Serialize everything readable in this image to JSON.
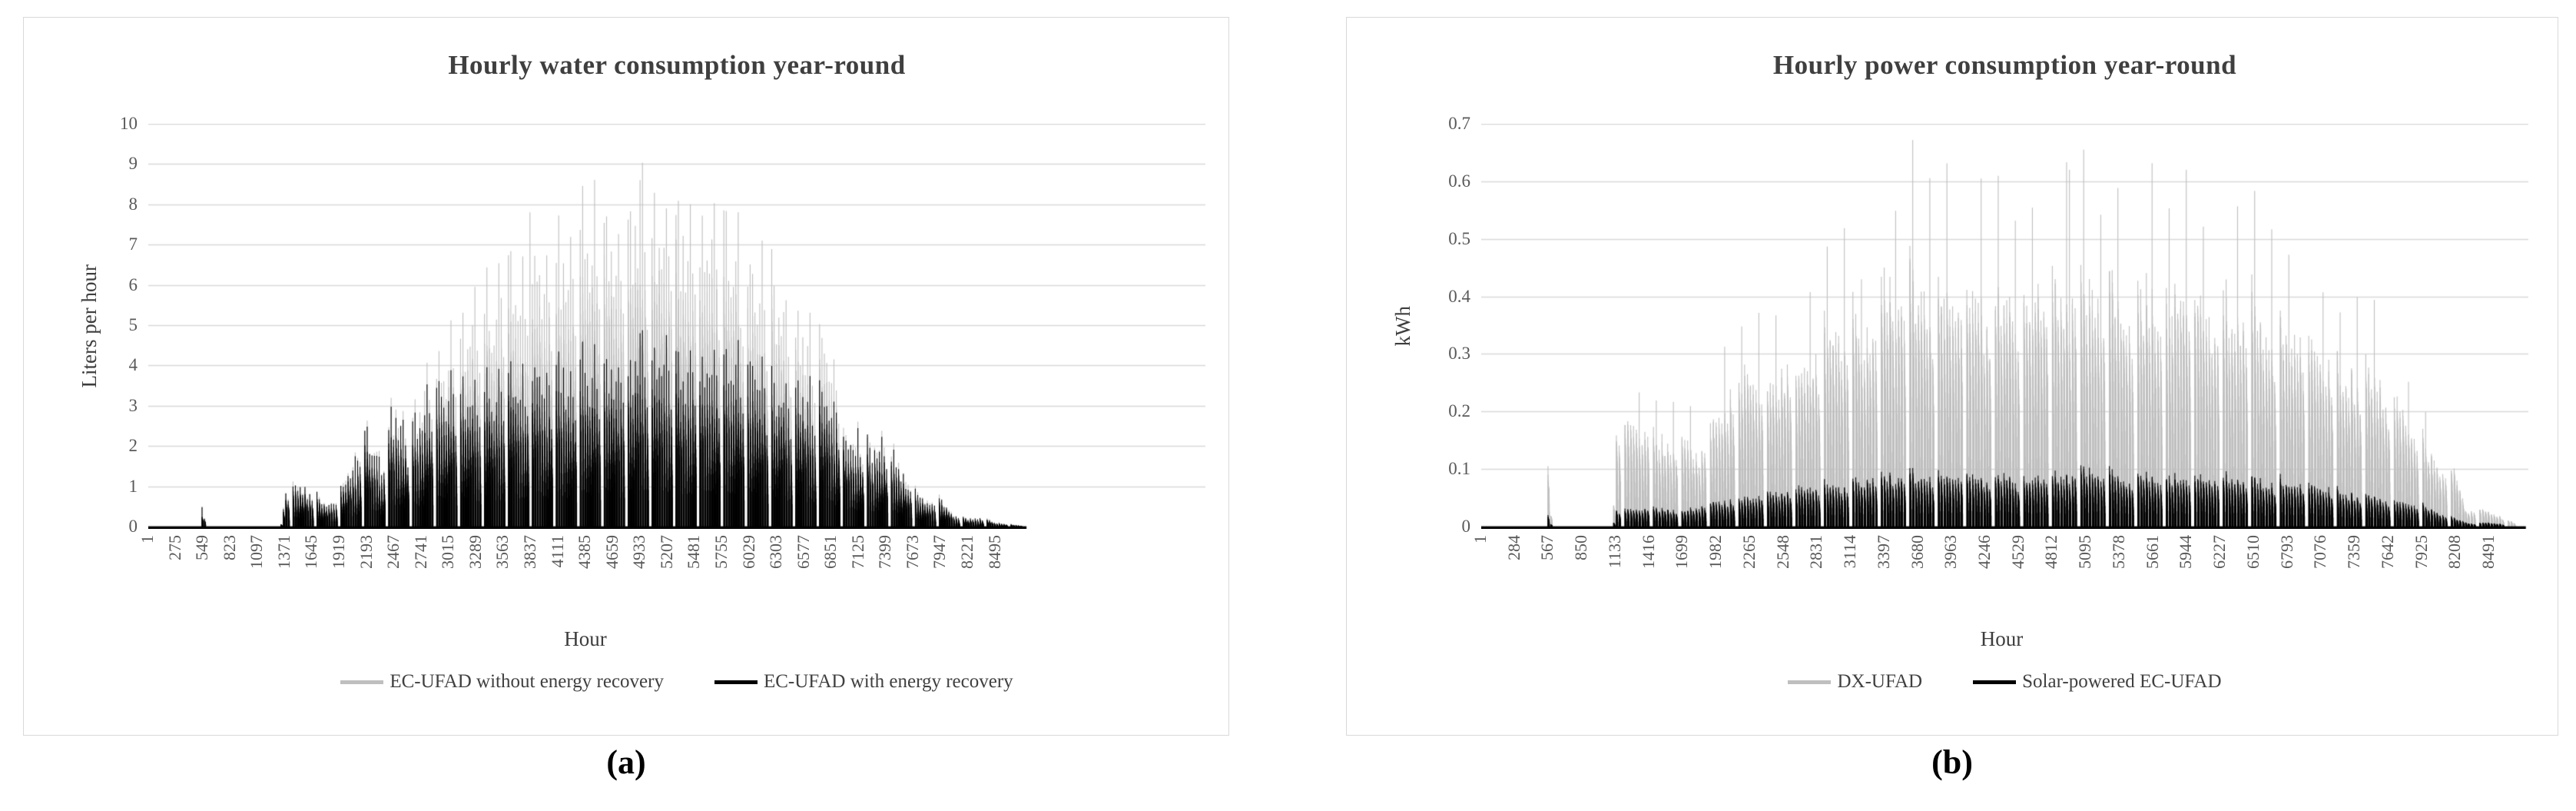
{
  "figure": {
    "background": "#ffffff"
  },
  "style": {
    "bar_gray": "#bfbfbf",
    "bar_black": "#000000",
    "gridline": "#d9d9d9",
    "axis_line": "#000000",
    "tick_text": "#595959",
    "title_text": "#3f3f3f",
    "card_border": "#d9d9d9",
    "legend_text": "#404040"
  },
  "panels": [
    {
      "caption": "(a)"
    },
    {
      "caption": "(b)"
    }
  ],
  "chart_data": [
    {
      "type": "bar",
      "title": "Hourly water consumption year-round",
      "xlabel": "Hour",
      "ylabel": "Liters per hour",
      "ylim": [
        0,
        10
      ],
      "y_ticks": [
        "10",
        "9",
        "8",
        "7",
        "6",
        "5",
        "4",
        "3",
        "2",
        "1",
        "0"
      ],
      "x_ticks": [
        "1",
        "275",
        "549",
        "823",
        "1097",
        "1371",
        "1645",
        "1919",
        "2193",
        "2467",
        "2741",
        "3015",
        "3289",
        "3563",
        "3837",
        "4111",
        "4385",
        "4659",
        "4933",
        "5207",
        "5481",
        "5755",
        "6029",
        "6303",
        "6577",
        "6851",
        "7125",
        "7399",
        "7673",
        "7947",
        "8221",
        "8495"
      ],
      "x_tick_interval": 274,
      "hours_total": 8760,
      "axis_hours": 10600,
      "grid": "horizontal",
      "legend_position": "bottom",
      "series": [
        {
          "name": "EC-UFAD without energy recovery",
          "color": "#bfbfbf",
          "boost_factor": 1.08,
          "envelope_points": [
            [
              1,
              0
            ],
            [
              520,
              0
            ],
            [
              549,
              0.5
            ],
            [
              580,
              0
            ],
            [
              1330,
              0
            ],
            [
              1371,
              0.95
            ],
            [
              1500,
              1.1
            ],
            [
              1645,
              0.9
            ],
            [
              1790,
              0.55
            ],
            [
              1919,
              0.9
            ],
            [
              2060,
              1.6
            ],
            [
              2193,
              2.6
            ],
            [
              2330,
              1.6
            ],
            [
              2467,
              3.0
            ],
            [
              2610,
              2.35
            ],
            [
              2741,
              3.4
            ],
            [
              2890,
              3.7
            ],
            [
              3015,
              4.4
            ],
            [
              3160,
              4.9
            ],
            [
              3289,
              6.0
            ],
            [
              3430,
              5.4
            ],
            [
              3563,
              6.4
            ],
            [
              3700,
              5.8
            ],
            [
              3837,
              6.6
            ],
            [
              3990,
              6.4
            ],
            [
              4111,
              6.7
            ],
            [
              4250,
              6.9
            ],
            [
              4385,
              7.2
            ],
            [
              4520,
              7.4
            ],
            [
              4659,
              7.2
            ],
            [
              4800,
              7.5
            ],
            [
              4933,
              7.9
            ],
            [
              5070,
              7.6
            ],
            [
              5207,
              7.9
            ],
            [
              5350,
              7.4
            ],
            [
              5481,
              7.3
            ],
            [
              5620,
              7.6
            ],
            [
              5755,
              7.1
            ],
            [
              5890,
              6.8
            ],
            [
              6029,
              6.6
            ],
            [
              6160,
              6.2
            ],
            [
              6303,
              6.0
            ],
            [
              6440,
              5.2
            ],
            [
              6577,
              4.7
            ],
            [
              6710,
              4.5
            ],
            [
              6851,
              4.6
            ],
            [
              6990,
              2.3
            ],
            [
              7125,
              2.3
            ],
            [
              7260,
              2.1
            ],
            [
              7399,
              2.2
            ],
            [
              7540,
              1.6
            ],
            [
              7673,
              1.1
            ],
            [
              7810,
              0.65
            ],
            [
              7947,
              0.75
            ],
            [
              8080,
              0.35
            ],
            [
              8221,
              0.22
            ],
            [
              8360,
              0.26
            ],
            [
              8495,
              0.12
            ],
            [
              8760,
              0.03
            ]
          ],
          "spikes": [
            [
              549,
              0.5
            ],
            [
              3837,
              7.8
            ],
            [
              4933,
              8.6
            ],
            [
              5207,
              7.9
            ]
          ]
        },
        {
          "name": "EC-UFAD with energy recovery",
          "color": "#000000",
          "boost_factor": 1.06,
          "envelope_points": [
            [
              1,
              0
            ],
            [
              520,
              0
            ],
            [
              549,
              0.48
            ],
            [
              580,
              0
            ],
            [
              1330,
              0
            ],
            [
              1371,
              0.93
            ],
            [
              1500,
              1.07
            ],
            [
              1645,
              0.88
            ],
            [
              1790,
              0.53
            ],
            [
              1919,
              0.88
            ],
            [
              2060,
              1.55
            ],
            [
              2193,
              2.5
            ],
            [
              2330,
              1.5
            ],
            [
              2467,
              2.85
            ],
            [
              2610,
              2.2
            ],
            [
              2741,
              3.05
            ],
            [
              2890,
              3.2
            ],
            [
              3015,
              3.45
            ],
            [
              3160,
              3.5
            ],
            [
              3289,
              3.7
            ],
            [
              3430,
              3.4
            ],
            [
              3563,
              3.85
            ],
            [
              3700,
              3.6
            ],
            [
              3837,
              4.0
            ],
            [
              3990,
              3.7
            ],
            [
              4111,
              3.85
            ],
            [
              4250,
              3.75
            ],
            [
              4385,
              4.0
            ],
            [
              4520,
              3.9
            ],
            [
              4659,
              4.1
            ],
            [
              4800,
              4.0
            ],
            [
              4933,
              4.35
            ],
            [
              5070,
              4.15
            ],
            [
              5207,
              4.3
            ],
            [
              5350,
              4.05
            ],
            [
              5481,
              4.1
            ],
            [
              5620,
              4.2
            ],
            [
              5755,
              4.0
            ],
            [
              5890,
              4.05
            ],
            [
              6029,
              4.25
            ],
            [
              6160,
              3.75
            ],
            [
              6303,
              3.65
            ],
            [
              6440,
              3.45
            ],
            [
              6577,
              3.35
            ],
            [
              6710,
              3.25
            ],
            [
              6851,
              3.4
            ],
            [
              6990,
              2.2
            ],
            [
              7125,
              2.2
            ],
            [
              7260,
              2.0
            ],
            [
              7399,
              2.1
            ],
            [
              7540,
              1.5
            ],
            [
              7673,
              1.05
            ],
            [
              7810,
              0.6
            ],
            [
              7947,
              0.7
            ],
            [
              8080,
              0.32
            ],
            [
              8221,
              0.2
            ],
            [
              8360,
              0.24
            ],
            [
              8495,
              0.1
            ],
            [
              8760,
              0.02
            ]
          ],
          "spikes": [
            [
              549,
              0.48
            ],
            [
              4933,
              4.8
            ]
          ]
        }
      ],
      "pattern": {
        "seed": 7,
        "day_cycle": [
          1,
          0.93,
          0.85,
          0.9,
          0.8,
          0.88,
          0.78,
          0.84,
          0.7,
          0
        ],
        "hour_shape": [
          1,
          0.84,
          0.78,
          0.74,
          0.7,
          0.66,
          0.62,
          0.58,
          0.54,
          0.48,
          0.42,
          0.34,
          0.24
        ],
        "active_start_hour": 7,
        "boost_every": 5,
        "boost_min": 1.5,
        "jitter": 0.1
      }
    },
    {
      "type": "bar",
      "title": "Hourly power consumption year-round",
      "xlabel": "Hour",
      "ylabel": "kWh",
      "ylim": [
        0,
        0.7
      ],
      "y_ticks": [
        "0.7",
        "0.6",
        "0.5",
        "0.4",
        "0.3",
        "0.2",
        "0.1",
        "0"
      ],
      "x_ticks": [
        "1",
        "284",
        "567",
        "850",
        "1133",
        "1416",
        "1699",
        "1982",
        "2265",
        "2548",
        "2831",
        "3114",
        "3397",
        "3680",
        "3963",
        "4246",
        "4529",
        "4812",
        "5095",
        "5378",
        "5661",
        "5944",
        "6227",
        "6510",
        "6793",
        "7076",
        "7359",
        "7642",
        "7925",
        "8208",
        "8491"
      ],
      "x_tick_interval": 283,
      "hours_total": 8760,
      "axis_hours": 8820,
      "grid": "horizontal",
      "legend_position": "bottom",
      "series": [
        {
          "name": "DX-UFAD",
          "color": "#bfbfbf",
          "boost_factor": 1.35,
          "envelope_points": [
            [
              1,
              0
            ],
            [
              540,
              0
            ],
            [
              567,
              0.105
            ],
            [
              595,
              0
            ],
            [
              1110,
              0
            ],
            [
              1133,
              0.17
            ],
            [
              1250,
              0.2
            ],
            [
              1416,
              0.18
            ],
            [
              1560,
              0.15
            ],
            [
              1699,
              0.17
            ],
            [
              1840,
              0.13
            ],
            [
              1982,
              0.2
            ],
            [
              2120,
              0.26
            ],
            [
              2265,
              0.3
            ],
            [
              2410,
              0.24
            ],
            [
              2548,
              0.3
            ],
            [
              2690,
              0.28
            ],
            [
              2831,
              0.33
            ],
            [
              2970,
              0.38
            ],
            [
              3114,
              0.38
            ],
            [
              3250,
              0.34
            ],
            [
              3397,
              0.45
            ],
            [
              3540,
              0.44
            ],
            [
              3680,
              0.46
            ],
            [
              3820,
              0.44
            ],
            [
              3963,
              0.45
            ],
            [
              4100,
              0.42
            ],
            [
              4246,
              0.44
            ],
            [
              4390,
              0.42
            ],
            [
              4529,
              0.43
            ],
            [
              4670,
              0.45
            ],
            [
              4812,
              0.44
            ],
            [
              4950,
              0.46
            ],
            [
              5095,
              0.45
            ],
            [
              5240,
              0.43
            ],
            [
              5378,
              0.44
            ],
            [
              5520,
              0.41
            ],
            [
              5661,
              0.44
            ],
            [
              5800,
              0.42
            ],
            [
              5944,
              0.46
            ],
            [
              6090,
              0.4
            ],
            [
              6227,
              0.43
            ],
            [
              6370,
              0.39
            ],
            [
              6510,
              0.4
            ],
            [
              6650,
              0.37
            ],
            [
              6793,
              0.36
            ],
            [
              6930,
              0.34
            ],
            [
              7076,
              0.33
            ],
            [
              7210,
              0.3
            ],
            [
              7359,
              0.29
            ],
            [
              7500,
              0.27
            ],
            [
              7642,
              0.25
            ],
            [
              7780,
              0.21
            ],
            [
              7925,
              0.16
            ],
            [
              8060,
              0.12
            ],
            [
              8208,
              0.1
            ],
            [
              8300,
              0.03
            ],
            [
              8491,
              0.03
            ],
            [
              8760,
              0
            ]
          ],
          "spikes": [
            [
              567,
              0.105
            ],
            [
              4950,
              0.62
            ],
            [
              5944,
              0.62
            ]
          ]
        },
        {
          "name": "Solar-powered EC-UFAD",
          "color": "#000000",
          "boost_factor": 1.22,
          "envelope_points": [
            [
              1,
              0
            ],
            [
              540,
              0
            ],
            [
              567,
              0.02
            ],
            [
              595,
              0
            ],
            [
              1110,
              0
            ],
            [
              1133,
              0.03
            ],
            [
              1416,
              0.035
            ],
            [
              1699,
              0.03
            ],
            [
              1982,
              0.045
            ],
            [
              2265,
              0.055
            ],
            [
              2548,
              0.065
            ],
            [
              2831,
              0.075
            ],
            [
              3114,
              0.08
            ],
            [
              3397,
              0.095
            ],
            [
              3680,
              0.095
            ],
            [
              3963,
              0.095
            ],
            [
              4246,
              0.095
            ],
            [
              4529,
              0.09
            ],
            [
              4812,
              0.095
            ],
            [
              5095,
              0.105
            ],
            [
              5378,
              0.095
            ],
            [
              5661,
              0.095
            ],
            [
              5944,
              0.09
            ],
            [
              6227,
              0.095
            ],
            [
              6510,
              0.085
            ],
            [
              6793,
              0.08
            ],
            [
              7076,
              0.075
            ],
            [
              7359,
              0.06
            ],
            [
              7642,
              0.05
            ],
            [
              7925,
              0.04
            ],
            [
              8208,
              0.015
            ],
            [
              8350,
              0.005
            ],
            [
              8491,
              0.008
            ],
            [
              8760,
              0
            ]
          ],
          "spikes": [
            [
              567,
              0.02
            ]
          ]
        }
      ],
      "pattern": {
        "seed": 11,
        "day_cycle": [
          1,
          0.95,
          0.88,
          0.93,
          0.85,
          0.9,
          0.8,
          0.87,
          0.75,
          0
        ],
        "hour_shape": [
          1,
          0.93,
          0.9,
          0.87,
          0.84,
          0.8,
          0.77,
          0.73,
          0.68,
          0.62,
          0.55,
          0.45,
          0.3
        ],
        "active_start_hour": 7,
        "boost_every": 6,
        "boost_min": 0.12,
        "jitter": 0.1
      }
    }
  ]
}
